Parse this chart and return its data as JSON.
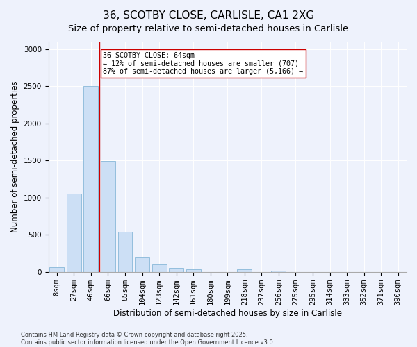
{
  "title": "36, SCOTBY CLOSE, CARLISLE, CA1 2XG",
  "subtitle": "Size of property relative to semi-detached houses in Carlisle",
  "xlabel": "Distribution of semi-detached houses by size in Carlisle",
  "ylabel": "Number of semi-detached properties",
  "categories": [
    "8sqm",
    "27sqm",
    "46sqm",
    "66sqm",
    "85sqm",
    "104sqm",
    "123sqm",
    "142sqm",
    "161sqm",
    "180sqm",
    "199sqm",
    "218sqm",
    "237sqm",
    "256sqm",
    "275sqm",
    "295sqm",
    "314sqm",
    "333sqm",
    "352sqm",
    "371sqm",
    "390sqm"
  ],
  "values": [
    60,
    1050,
    2500,
    1490,
    540,
    190,
    100,
    55,
    35,
    0,
    0,
    35,
    0,
    20,
    0,
    0,
    0,
    0,
    0,
    0,
    0
  ],
  "bar_color": "#ccdff5",
  "bar_edge_color": "#88b8d8",
  "vline_x_index": 3,
  "vline_color": "#cc0000",
  "annotation_text": "36 SCOTBY CLOSE: 64sqm\n← 12% of semi-detached houses are smaller (707)\n87% of semi-detached houses are larger (5,166) →",
  "annotation_box_facecolor": "#ffffff",
  "annotation_box_edgecolor": "#cc0000",
  "ylim": [
    0,
    3100
  ],
  "yticks": [
    0,
    500,
    1000,
    1500,
    2000,
    2500,
    3000
  ],
  "footer_text": "Contains HM Land Registry data © Crown copyright and database right 2025.\nContains public sector information licensed under the Open Government Licence v3.0.",
  "background_color": "#eef2fc",
  "title_fontsize": 11,
  "subtitle_fontsize": 9.5,
  "axis_label_fontsize": 8.5,
  "tick_label_fontsize": 7.5,
  "footer_fontsize": 6.0
}
